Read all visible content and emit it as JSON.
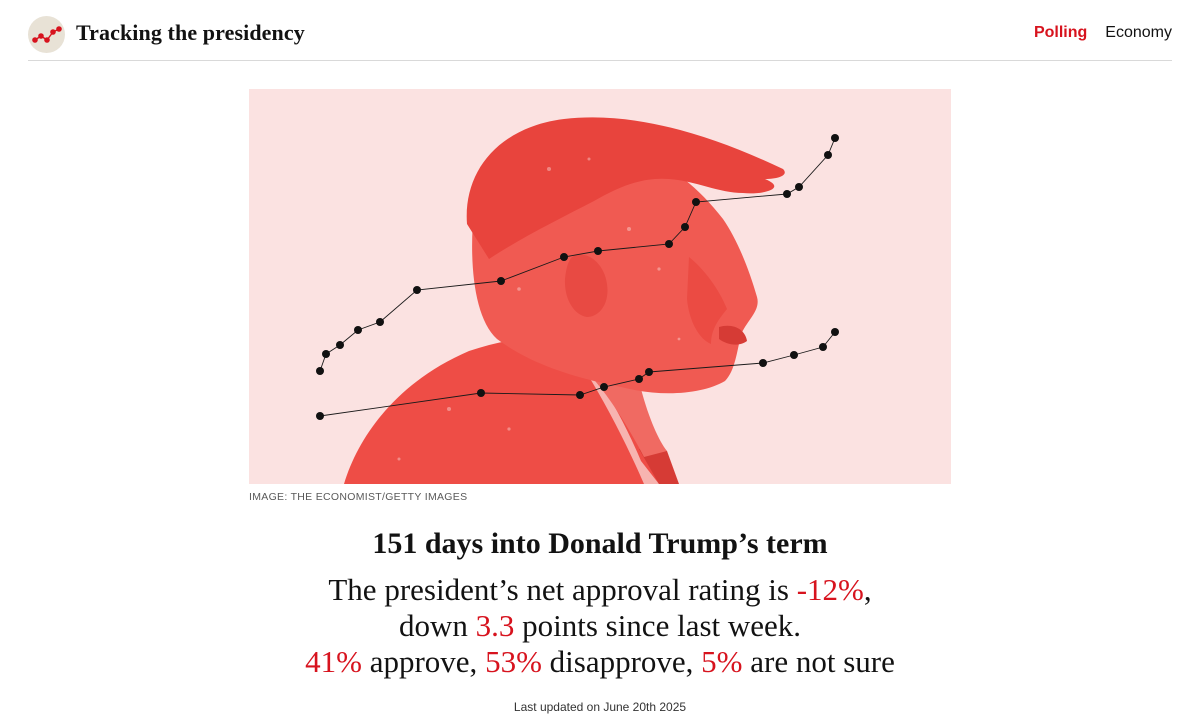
{
  "header": {
    "site_title": "Tracking the presidency",
    "logo_icon": "sparkline-logo-icon",
    "nav": [
      {
        "label": "Polling",
        "active": true
      },
      {
        "label": "Economy",
        "active": false
      }
    ]
  },
  "hero": {
    "caption": "IMAGE: THE ECONOMIST/GETTY IMAGES",
    "image_subject": "portrait-illustration-icon"
  },
  "headline": "151 days into Donald Trump’s term",
  "summary": {
    "line1_prefix": "The president’s net approval rating is ",
    "net_approval": "-12%",
    "line1_suffix": ",",
    "line2_prefix": "down ",
    "change_points": "3.3",
    "line2_suffix": " points since last week.",
    "approve": "41%",
    "approve_label": " approve, ",
    "disapprove": "53%",
    "disapprove_label": " disapprove, ",
    "not_sure": "5%",
    "not_sure_label": " are not sure"
  },
  "last_updated": "Last updated on June 20th 2025",
  "colors": {
    "accent": "#d7131e",
    "hero_bg": "#fbe2e1",
    "portrait": "#ee4d46"
  }
}
